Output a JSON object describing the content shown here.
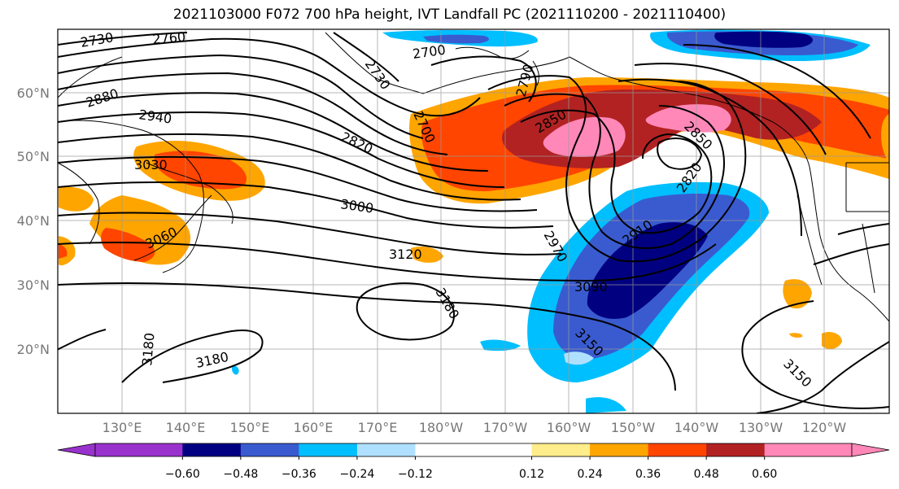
{
  "title": "2021103000 F072 700 hPa height, IVT Landfall PC (2021110200 - 2021110400)",
  "lat_labels": [
    "60°N",
    "50°N",
    "40°N",
    "30°N",
    "20°N"
  ],
  "lon_labels": [
    "130°E",
    "140°E",
    "150°E",
    "160°E",
    "170°E",
    "180°W",
    "170°W",
    "160°W",
    "150°W",
    "140°W",
    "130°W",
    "120°W"
  ],
  "colorbar": {
    "ticks": [
      "−0.60",
      "−0.48",
      "−0.36",
      "−0.24",
      "−0.12",
      "0.12",
      "0.24",
      "0.36",
      "0.48",
      "0.60"
    ],
    "colors": [
      "#9932cc",
      "#000080",
      "#3a5bd0",
      "#00bfff",
      "#b0e0ff",
      "#ffffff",
      "#ffec8b",
      "#ffa500",
      "#ff4500",
      "#b22222",
      "#ff88b8"
    ]
  },
  "contour_labels": [
    {
      "id": "c2730a",
      "text": "2730"
    },
    {
      "id": "c2760",
      "text": "2760"
    },
    {
      "id": "c2730b",
      "text": "2730"
    },
    {
      "id": "c2700a",
      "text": "2700"
    },
    {
      "id": "c2790",
      "text": "2790"
    },
    {
      "id": "c2880",
      "text": "2880"
    },
    {
      "id": "c2940",
      "text": "2940"
    },
    {
      "id": "c2820a",
      "text": "2820"
    },
    {
      "id": "c2700b",
      "text": "2700"
    },
    {
      "id": "c2850a",
      "text": "2850"
    },
    {
      "id": "c2850b",
      "text": "2850"
    },
    {
      "id": "c3030",
      "text": "3030"
    },
    {
      "id": "c3000",
      "text": "3000"
    },
    {
      "id": "c2820b",
      "text": "2820"
    },
    {
      "id": "c3060",
      "text": "3060"
    },
    {
      "id": "c2910",
      "text": "2910"
    },
    {
      "id": "c2970",
      "text": "2970"
    },
    {
      "id": "c3120",
      "text": "3120"
    },
    {
      "id": "c3090",
      "text": "3090"
    },
    {
      "id": "c3180a",
      "text": "3180"
    },
    {
      "id": "c3180b",
      "text": "3180"
    },
    {
      "id": "c3180c",
      "text": "3180"
    },
    {
      "id": "c3150a",
      "text": "3150"
    },
    {
      "id": "c3150b",
      "text": "3150"
    }
  ]
}
